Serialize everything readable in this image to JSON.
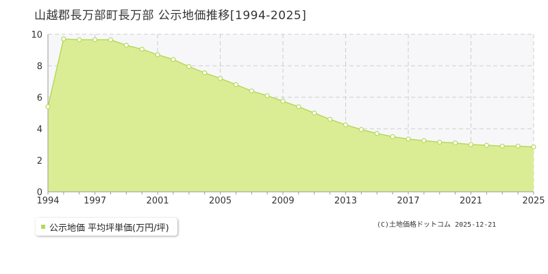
{
  "title": "山越郡長万部町長万部 公示地価推移[1994-2025]",
  "credit": "(C)土地価格ドットコム 2025-12-21",
  "colors": {
    "line": "#b5d95a",
    "fill": "#dbed94",
    "marker_fill": "#ffffff",
    "plot_bg": "#f7f7fa",
    "grid": "#cccccc"
  },
  "chart_data": {
    "type": "area",
    "title": "山越郡長万部町長万部 公示地価推移[1994-2025]",
    "xlabel": "",
    "ylabel": "",
    "xlim": [
      1994,
      2025
    ],
    "ylim": [
      0,
      10
    ],
    "x_ticks": [
      1994,
      1997,
      2001,
      2005,
      2009,
      2013,
      2017,
      2021,
      2025
    ],
    "y_ticks": [
      0,
      2,
      4,
      6,
      8,
      10
    ],
    "grid": true,
    "legend_position": "bottom-left",
    "series": [
      {
        "name": "公示地価 平均坪単価(万円/坪)",
        "x": [
          1994,
          1995,
          1996,
          1997,
          1998,
          1999,
          2000,
          2001,
          2002,
          2003,
          2004,
          2005,
          2006,
          2007,
          2008,
          2009,
          2010,
          2011,
          2012,
          2013,
          2014,
          2015,
          2016,
          2017,
          2018,
          2019,
          2020,
          2021,
          2022,
          2023,
          2024,
          2025
        ],
        "values": [
          5.4,
          9.7,
          9.65,
          9.65,
          9.65,
          9.3,
          9.05,
          8.7,
          8.4,
          7.95,
          7.55,
          7.2,
          6.8,
          6.4,
          6.1,
          5.75,
          5.4,
          5.0,
          4.6,
          4.25,
          3.95,
          3.7,
          3.5,
          3.35,
          3.25,
          3.15,
          3.1,
          3.0,
          2.95,
          2.9,
          2.9,
          2.85
        ]
      }
    ]
  }
}
